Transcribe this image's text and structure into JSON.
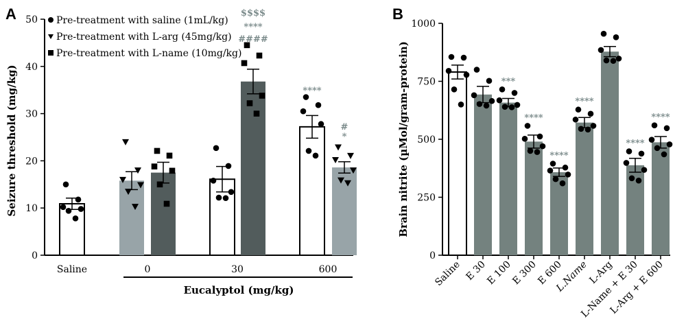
{
  "colors": {
    "saline_bar": "#ffffff",
    "larg_bar": "#98a4a8",
    "lname_bar": "#525c5c",
    "panel_b_bar": "#74827f",
    "point": "#000000",
    "sig_gray": "#7a8a8a"
  },
  "chart_data": [
    {
      "type": "bar",
      "panel_label": "A",
      "ylabel": "Seizure threshold (mg/kg)",
      "xlabel": "Eucalyptol (mg/kg)",
      "ylim": [
        0,
        50
      ],
      "yticks": [
        "0",
        "10",
        "20",
        "30",
        "40",
        "50"
      ],
      "groups": [
        "Saline",
        "0",
        "30",
        "600"
      ],
      "legend": {
        "placement": "top-left",
        "items": [
          {
            "label": "Pre-treatment with saline (1mL/kg)",
            "marker": "circle"
          },
          {
            "label": "Pre-treatment with L-arg (45mg/kg)",
            "marker": "triangle-down"
          },
          {
            "label": "Pre-treatment with L-name (10mg/kg)",
            "marker": "square"
          }
        ]
      },
      "bars": [
        {
          "group": "Saline",
          "series": "saline",
          "value": 10.9,
          "error": 1.2,
          "points": [
            15,
            11.8,
            10.2,
            9.8,
            9.4,
            7.8
          ],
          "marker": "circle"
        },
        {
          "group": "0",
          "series": "larg",
          "value": 15.8,
          "error": 1.9,
          "points": [
            24,
            18,
            16,
            14.9,
            13.5,
            10.3
          ],
          "marker": "triangle-down"
        },
        {
          "group": "0",
          "series": "lname",
          "value": 17.5,
          "error": 2.2,
          "points": [
            22.1,
            21.1,
            18.8,
            17.9,
            15,
            10.9
          ],
          "marker": "square"
        },
        {
          "group": "30",
          "series": "saline",
          "value": 16.1,
          "error": 2.7,
          "points": [
            22.7,
            18.9,
            15.8,
            13.4,
            12.2,
            12.1
          ],
          "marker": "circle"
        },
        {
          "group": "30",
          "series": "lname",
          "value": 36.8,
          "error": 2.6,
          "points": [
            44.5,
            42.3,
            40.7,
            33.8,
            32.2,
            30
          ],
          "marker": "square"
        },
        {
          "group": "600",
          "series": "saline",
          "value": 27.2,
          "error": 2.4,
          "points": [
            33.5,
            31.8,
            30.5,
            27.8,
            22.1,
            21.1
          ],
          "marker": "circle"
        },
        {
          "group": "600",
          "series": "larg",
          "value": 18.6,
          "error": 1.2,
          "points": [
            22.9,
            21.1,
            20.2,
            18,
            15.9,
            15.3
          ],
          "marker": "triangle-down"
        }
      ],
      "annotations": [
        {
          "bar": 4,
          "text": "$$$$",
          "color": "#7a8a8a"
        },
        {
          "bar": 4,
          "text": "****",
          "color": "#7a8a8a"
        },
        {
          "bar": 4,
          "text": "####",
          "color": "#7a8a8a"
        },
        {
          "bar": 5,
          "text": "****",
          "color": "#7a8a8a"
        },
        {
          "bar": 6,
          "text": "#",
          "color": "#7a8a8a"
        },
        {
          "bar": 6,
          "text": "*",
          "color": "#7a8a8a"
        }
      ]
    },
    {
      "type": "bar",
      "panel_label": "B",
      "ylabel": "Brain nitrite (µMol/gram-protein)",
      "ylim": [
        0,
        1000
      ],
      "yticks": [
        "0",
        "250",
        "500",
        "750",
        "1000"
      ],
      "categories": [
        "Saline",
        "E 30",
        "E 100",
        "E 300",
        "E 600",
        "L.Name",
        "L-Arg",
        "L-Name + E 30",
        "L-Arg + E 600"
      ],
      "values": [
        790,
        693,
        658,
        490,
        358,
        572,
        878,
        388,
        487
      ],
      "errors": [
        30,
        35,
        18,
        28,
        18,
        22,
        22,
        30,
        25
      ],
      "points": [
        [
          855,
          852,
          795,
          778,
          715,
          650
        ],
        [
          800,
          752,
          690,
          665,
          652,
          645
        ],
        [
          715,
          700,
          668,
          648,
          640,
          638
        ],
        [
          558,
          512,
          502,
          470,
          450,
          445
        ],
        [
          395,
          378,
          365,
          348,
          328,
          310
        ],
        [
          628,
          610,
          585,
          558,
          545,
          542
        ],
        [
          955,
          940,
          885,
          848,
          840,
          838
        ],
        [
          448,
          438,
          398,
          368,
          332,
          322
        ],
        [
          560,
          548,
          498,
          478,
          462,
          435
        ]
      ],
      "annotations": [
        "",
        "",
        "***",
        "****",
        "****",
        "****",
        "",
        "****",
        "****"
      ]
    }
  ]
}
